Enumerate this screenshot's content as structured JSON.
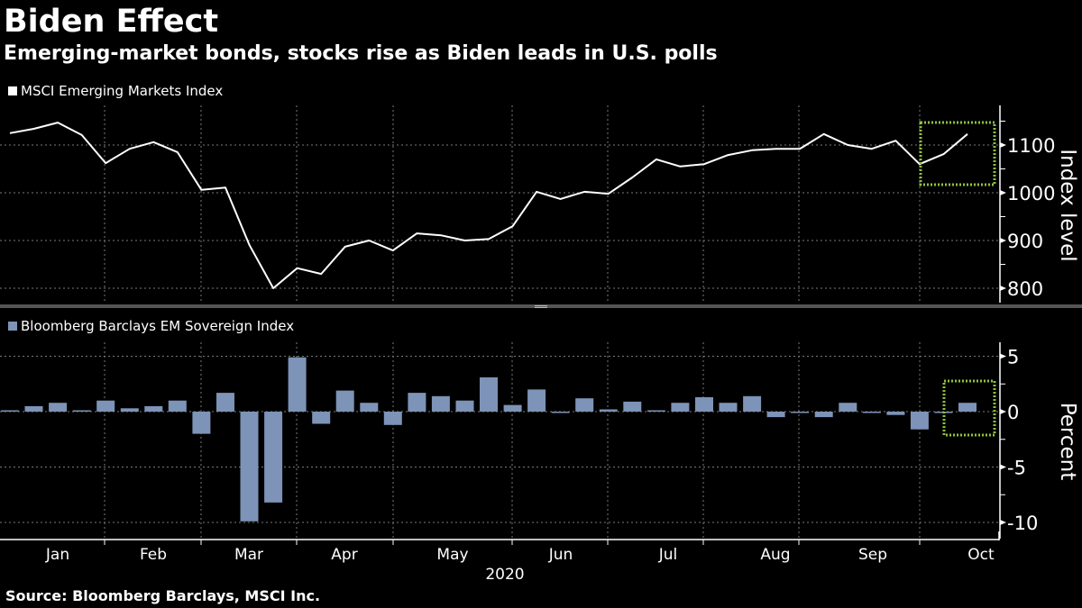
{
  "header": {
    "title": "Biden Effect",
    "subtitle": "Emerging-market bonds, stocks rise as Biden leads in U.S. polls"
  },
  "footer": {
    "source": "Source: Bloomberg Barclays, MSCI Inc."
  },
  "colors": {
    "background": "#000000",
    "line": "#ffffff",
    "bar": "#7d93b7",
    "highlight": "#8fc13e",
    "grid": "#7a7a7a",
    "separator": "#555555"
  },
  "chart_data": [
    {
      "type": "line",
      "title": "Biden Effect",
      "subtitle": "Emerging-market bonds, stocks rise as Biden leads in U.S. polls",
      "legend": [
        "MSCI Emerging Markets Index"
      ],
      "legend_position": "top-left",
      "ylabel": "Index level",
      "ylim": [
        780,
        1175
      ],
      "yticks": [
        800,
        900,
        1000,
        1100
      ],
      "ytick_labels": [
        "800",
        "900",
        "1000",
        "1100"
      ],
      "grid": true,
      "x_period": "weekly, Jan–Oct 2020",
      "series": [
        {
          "name": "MSCI Emerging Markets Index",
          "values": [
            1125,
            1134,
            1147,
            1121,
            1062,
            1092,
            1106,
            1085,
            1006,
            1011,
            891,
            800,
            842,
            830,
            887,
            900,
            879,
            915,
            911,
            900,
            903,
            930,
            1002,
            987,
            1002,
            998,
            1032,
            1070,
            1055,
            1060,
            1079,
            1089,
            1092,
            1092,
            1123,
            1100,
            1092,
            1109,
            1060,
            1081,
            1123
          ]
        }
      ],
      "annotation": "dotted green box highlighting the last three weeks (rise in October)"
    },
    {
      "type": "bar",
      "legend": [
        "Bloomberg Barclays EM Sovereign Index"
      ],
      "legend_position": "top-left",
      "ylabel": "Percent",
      "ylim": [
        -11,
        6
      ],
      "yticks": [
        5,
        0,
        -5,
        -10
      ],
      "ytick_labels": [
        "5",
        "0",
        "-5",
        "-10"
      ],
      "grid": true,
      "xlabel": "2020",
      "categories": [
        "Jan",
        "Feb",
        "Mar",
        "Apr",
        "May",
        "Jun",
        "Jul",
        "Aug",
        "Sep",
        "Oct"
      ],
      "series": [
        {
          "name": "Bloomberg Barclays EM Sovereign Index",
          "values": [
            0.1,
            0.5,
            0.8,
            0.1,
            1.0,
            0.3,
            0.5,
            1.0,
            -2.0,
            1.7,
            -9.9,
            -8.2,
            4.9,
            -1.1,
            1.9,
            0.8,
            -1.2,
            1.7,
            1.4,
            1.0,
            3.1,
            0.6,
            2.0,
            -0.1,
            1.2,
            0.2,
            0.9,
            0.1,
            0.8,
            1.3,
            0.8,
            1.4,
            -0.5,
            -0.05,
            -0.5,
            0.8,
            -0.1,
            -0.3,
            -1.6,
            -0.1,
            0.8
          ]
        }
      ],
      "annotation": "dotted green box highlighting the last two weeks"
    }
  ],
  "xaxis": {
    "month_labels": [
      "Jan",
      "Feb",
      "Mar",
      "Apr",
      "May",
      "Jun",
      "Jul",
      "Aug",
      "Sep",
      "Oct"
    ],
    "year_label": "2020"
  }
}
